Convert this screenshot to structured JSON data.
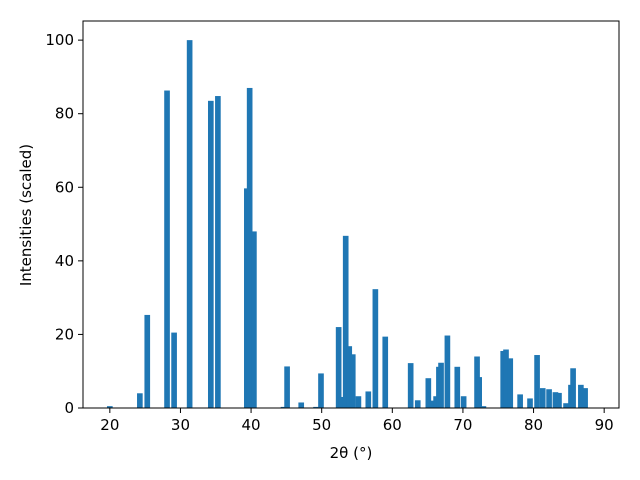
{
  "chart_data": {
    "type": "bar",
    "xlabel": "2θ (°)",
    "ylabel": "Intensities (scaled)",
    "color": "#1f77b4",
    "x": [
      20.0,
      24.25,
      25.3,
      28.1,
      29.1,
      31.3,
      34.3,
      35.3,
      39.4,
      39.8,
      40.4,
      44.6,
      45.1,
      47.1,
      49.2,
      49.9,
      52.4,
      52.8,
      53.4,
      53.9,
      54.4,
      55.2,
      56.6,
      57.6,
      59.0,
      62.6,
      63.6,
      65.1,
      65.6,
      66.2,
      66.6,
      66.9,
      67.8,
      69.2,
      70.1,
      72.0,
      72.3,
      72.9,
      75.7,
      76.1,
      76.7,
      78.1,
      79.5,
      80.5,
      81.3,
      82.2,
      83.1,
      83.6,
      84.6,
      85.3,
      85.6,
      86.7,
      87.3
    ],
    "values": [
      0.5,
      4,
      25.3,
      86.3,
      20.5,
      100,
      83.5,
      84.8,
      59.7,
      87,
      48,
      0.3,
      11.3,
      1.5,
      0.3,
      9.4,
      22,
      3,
      46.8,
      16.8,
      14.6,
      3.2,
      4.5,
      32.3,
      19.4,
      12.2,
      2.1,
      8.1,
      2,
      3.2,
      11.2,
      12.3,
      19.7,
      11.2,
      3.2,
      14,
      8.4,
      0.5,
      15.5,
      15.9,
      13.5,
      3.7,
      2.6,
      14.4,
      5.4,
      5.1,
      4.3,
      4.1,
      1.3,
      6.3,
      10.8,
      6.3,
      5.4
    ],
    "xlim": [
      16.2,
      92.1
    ],
    "ylim": [
      0,
      105.2
    ],
    "xticks": [
      20,
      30,
      40,
      50,
      60,
      70,
      80,
      90
    ],
    "yticks": [
      0,
      20,
      40,
      60,
      80,
      100
    ]
  }
}
